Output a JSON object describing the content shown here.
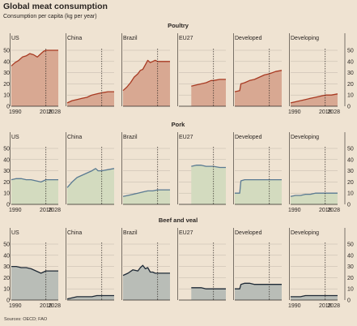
{
  "header": {
    "title": "Global meat consumption",
    "subtitle": "Consumption per capita (kg per year)"
  },
  "footer": {
    "source": "Sources: OECD; FAO"
  },
  "colors": {
    "poultry_fill": "#d8a892",
    "poultry_line": "#a83a22",
    "pork_fill": "#d3dbbf",
    "pork_line": "#5a7a92",
    "beef_fill": "#b9bdb7",
    "beef_line": "#1f2a36"
  },
  "chart_data": {
    "type": "area",
    "regions": [
      "US",
      "China",
      "Brazil",
      "EU27",
      "Developed",
      "Developing"
    ],
    "y_ticks": [
      0,
      10,
      20,
      30,
      40,
      50
    ],
    "ylim": [
      0,
      50
    ],
    "x_ticks": [
      "1990",
      "2018",
      "2028"
    ],
    "xlim": [
      1990,
      2028
    ],
    "projection_start": 2018,
    "panels": [
      {
        "name": "Poultry",
        "color_key": "poultry",
        "series": [
          {
            "region": "US",
            "x": [
              1990,
              1993,
              1996,
              1999,
              2002,
              2005,
              2008,
              2011,
              2014,
              2016,
              2018,
              2023,
              2028
            ],
            "y": [
              36,
              39,
              41,
              44,
              45,
              47,
              46,
              44,
              47,
              49,
              50,
              50,
              50
            ]
          },
          {
            "region": "China",
            "x": [
              1990,
              1994,
              1998,
              2002,
              2006,
              2010,
              2014,
              2018,
              2023,
              2028
            ],
            "y": [
              3,
              5,
              6,
              7,
              8,
              10,
              11,
              12,
              13,
              13
            ]
          },
          {
            "region": "Brazil",
            "x": [
              1990,
              1993,
              1996,
              1999,
              2002,
              2004,
              2006,
              2008,
              2010,
              2012,
              2014,
              2016,
              2018,
              2023,
              2028
            ],
            "y": [
              14,
              17,
              21,
              26,
              29,
              32,
              33,
              37,
              41,
              39,
              40,
              41,
              40,
              40,
              40
            ]
          },
          {
            "region": "EU27",
            "x": [
              2000,
              2004,
              2008,
              2012,
              2016,
              2018,
              2023,
              2028
            ],
            "y": [
              18,
              19,
              20,
              21,
              23,
              23,
              24,
              24
            ]
          },
          {
            "region": "Developed",
            "x": [
              1990,
              1994,
              1995,
              1998,
              2002,
              2006,
              2010,
              2014,
              2018,
              2023,
              2028
            ],
            "y": [
              13,
              14,
              20,
              21,
              23,
              24,
              26,
              28,
              29,
              31,
              32
            ]
          },
          {
            "region": "Developing",
            "x": [
              1990,
              1994,
              1998,
              2002,
              2006,
              2010,
              2014,
              2018,
              2023,
              2028
            ],
            "y": [
              3,
              4,
              5,
              6,
              7,
              8,
              9,
              10,
              10,
              11
            ]
          }
        ]
      },
      {
        "name": "Pork",
        "color_key": "pork",
        "series": [
          {
            "region": "US",
            "x": [
              1990,
              1994,
              1998,
              2002,
              2006,
              2010,
              2014,
              2016,
              2018,
              2023,
              2028
            ],
            "y": [
              22,
              23,
              23,
              22,
              22,
              21,
              20,
              21,
              22,
              22,
              22
            ]
          },
          {
            "region": "China",
            "x": [
              1990,
              1994,
              1998,
              2002,
              2006,
              2010,
              2013,
              2015,
              2018,
              2023,
              2028
            ],
            "y": [
              15,
              20,
              24,
              26,
              28,
              30,
              32,
              30,
              30,
              31,
              32
            ]
          },
          {
            "region": "Brazil",
            "x": [
              1990,
              1994,
              1998,
              2002,
              2006,
              2010,
              2014,
              2018,
              2023,
              2028
            ],
            "y": [
              7,
              8,
              9,
              10,
              11,
              12,
              12,
              13,
              13,
              13
            ]
          },
          {
            "region": "EU27",
            "x": [
              2000,
              2004,
              2008,
              2012,
              2016,
              2018,
              2023,
              2028
            ],
            "y": [
              34,
              35,
              35,
              34,
              34,
              34,
              33,
              33
            ]
          },
          {
            "region": "Developed",
            "x": [
              1990,
              1994,
              1995,
              1998,
              2002,
              2006,
              2010,
              2014,
              2018,
              2023,
              2028
            ],
            "y": [
              10,
              10,
              21,
              22,
              22,
              22,
              22,
              22,
              22,
              22,
              22
            ]
          },
          {
            "region": "Developing",
            "x": [
              1990,
              1994,
              1998,
              2002,
              2006,
              2010,
              2014,
              2018,
              2023,
              2028
            ],
            "y": [
              7,
              8,
              8,
              9,
              9,
              10,
              10,
              10,
              10,
              10
            ]
          }
        ]
      },
      {
        "name": "Beef and veal",
        "color_key": "beef",
        "series": [
          {
            "region": "US",
            "x": [
              1990,
              1994,
              1998,
              2002,
              2006,
              2010,
              2014,
              2016,
              2018,
              2023,
              2028
            ],
            "y": [
              30,
              30,
              29,
              29,
              28,
              26,
              24,
              25,
              26,
              26,
              26
            ]
          },
          {
            "region": "China",
            "x": [
              1990,
              1994,
              1998,
              2002,
              2006,
              2010,
              2014,
              2018,
              2023,
              2028
            ],
            "y": [
              1,
              2,
              3,
              3,
              3,
              3,
              4,
              4,
              4,
              4
            ]
          },
          {
            "region": "Brazil",
            "x": [
              1990,
              1994,
              1998,
              2002,
              2004,
              2006,
              2008,
              2010,
              2012,
              2014,
              2016,
              2018,
              2023,
              2028
            ],
            "y": [
              22,
              24,
              27,
              26,
              29,
              31,
              28,
              29,
              25,
              25,
              24,
              24,
              24,
              24
            ]
          },
          {
            "region": "EU27",
            "x": [
              2000,
              2004,
              2008,
              2012,
              2016,
              2018,
              2023,
              2028
            ],
            "y": [
              11,
              11,
              11,
              10,
              10,
              10,
              10,
              10
            ]
          },
          {
            "region": "Developed",
            "x": [
              1990,
              1994,
              1995,
              1998,
              2002,
              2006,
              2010,
              2014,
              2018,
              2023,
              2028
            ],
            "y": [
              10,
              10,
              14,
              15,
              15,
              14,
              14,
              14,
              14,
              14,
              14
            ]
          },
          {
            "region": "Developing",
            "x": [
              1990,
              1994,
              1998,
              2002,
              2006,
              2010,
              2014,
              2018,
              2023,
              2028
            ],
            "y": [
              3,
              3,
              3,
              4,
              4,
              4,
              4,
              4,
              4,
              4
            ]
          }
        ]
      }
    ]
  }
}
